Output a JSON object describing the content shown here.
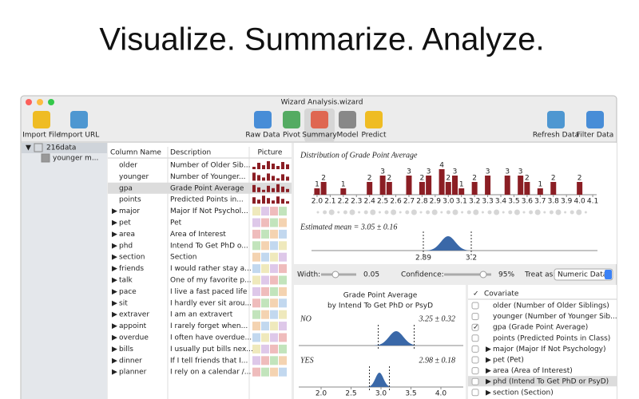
{
  "header": {
    "title": "Visualize. Summarize. Analyze."
  },
  "window": {
    "title": "Wizard Analysis.wizard"
  },
  "toolbar": {
    "left": [
      "Import File",
      "Import URL"
    ],
    "center": [
      "Raw Data",
      "Pivot",
      "Summary",
      "Model",
      "Predict"
    ],
    "right": [
      "Refresh Data",
      "Filter Data"
    ],
    "selected": 2
  },
  "sidebar": {
    "items": [
      "216data",
      "younger m..."
    ]
  },
  "table": {
    "columns": [
      "Column Name",
      "Description",
      "Picture"
    ],
    "selected": 2,
    "rows": [
      {
        "name": "older",
        "description": "Number of Older Sib...",
        "expandable": false
      },
      {
        "name": "younger",
        "description": "Number of Younger...",
        "expandable": false
      },
      {
        "name": "gpa",
        "description": "Grade Point Average",
        "expandable": false
      },
      {
        "name": "points",
        "description": "Predicted Points in...",
        "expandable": false
      },
      {
        "name": "major",
        "description": "Major If Not Psychol...",
        "expandable": true
      },
      {
        "name": "pet",
        "description": "Pet",
        "expandable": true
      },
      {
        "name": "area",
        "description": "Area of Interest",
        "expandable": true
      },
      {
        "name": "phd",
        "description": "Intend To Get PhD o...",
        "expandable": true
      },
      {
        "name": "section",
        "description": "Section",
        "expandable": true
      },
      {
        "name": "friends",
        "description": "I would rather stay a...",
        "expandable": true
      },
      {
        "name": "talk",
        "description": "One of my favorite p...",
        "expandable": true
      },
      {
        "name": "pace",
        "description": "I live a fast paced life",
        "expandable": true
      },
      {
        "name": "sit",
        "description": "I hardly ever sit arou...",
        "expandable": true
      },
      {
        "name": "extraver",
        "description": "I am an extravert",
        "expandable": true
      },
      {
        "name": "appoint",
        "description": "I rarely forget when...",
        "expandable": true
      },
      {
        "name": "overdue",
        "description": "I often have overdue...",
        "expandable": true
      },
      {
        "name": "bills",
        "description": "I usually put bills nex...",
        "expandable": true
      },
      {
        "name": "dinner",
        "description": "If I tell friends that I...",
        "expandable": true
      },
      {
        "name": "planner",
        "description": "I rely on a calendar /...",
        "expandable": true
      }
    ]
  },
  "chart_data": {
    "type": "bar",
    "title": "Distribution of Grade Point Average",
    "color": "#8b1e24",
    "x": [
      2.0,
      2.05,
      2.2,
      2.4,
      2.5,
      2.55,
      2.7,
      2.8,
      2.85,
      2.95,
      3.0,
      3.05,
      3.1,
      3.2,
      3.3,
      3.45,
      3.55,
      3.6,
      3.7,
      3.8,
      4.0
    ],
    "values": [
      1,
      2,
      1,
      2,
      3,
      2,
      3,
      2,
      3,
      4,
      2,
      3,
      1,
      2,
      3,
      3,
      3,
      2,
      1,
      2,
      2
    ],
    "xlim": [
      1.97,
      4.13
    ],
    "ylim": [
      0,
      4
    ],
    "xticks": [
      {
        "value": 2.0,
        "label": "2.0"
      },
      {
        "value": 2.1,
        "label": "2.1"
      },
      {
        "value": 2.2,
        "label": "2.2"
      },
      {
        "value": 2.3,
        "label": "2.3"
      },
      {
        "value": 2.4,
        "label": "2.4"
      },
      {
        "value": 2.5,
        "label": "2.5"
      },
      {
        "value": 2.6,
        "label": "2.6"
      },
      {
        "value": 2.7,
        "label": "2.7"
      },
      {
        "value": 2.8,
        "label": "2.8"
      },
      {
        "value": 2.9,
        "label": "2.9"
      },
      {
        "value": 3.0,
        "label": "3.0"
      },
      3.1,
      3.2,
      3.3,
      3.4,
      3.5,
      3.6,
      3.7,
      3.8,
      3.9,
      {
        "value": 4.0,
        "label": "4.0"
      },
      4.1
    ]
  },
  "mean": {
    "text": "Estimated mean = 3.05 ± 0.16",
    "low": 2.89,
    "high": 3.2
  },
  "controls": {
    "width_label": "Width:",
    "width_value": "0.05",
    "confidence_label": "Confidence:",
    "confidence_value": "95%",
    "treat_label": "Treat as:",
    "treat_value": "Numeric Data"
  },
  "group_chart": {
    "title": "Grade Point Average",
    "subtitle": "by Intend To Get PhD or PsyD",
    "groups": [
      {
        "name": "NO",
        "text": "3.25 ± 0.32"
      },
      {
        "name": "YES",
        "text": "2.98 ± 0.18"
      }
    ],
    "xticks": [
      {
        "value": 2.0,
        "label": "2.0"
      },
      {
        "value": 2.5,
        "label": "2.5"
      },
      {
        "value": 3.0,
        "label": "3.0"
      },
      {
        "value": 3.5,
        "label": "3.5"
      },
      {
        "value": 4.0,
        "label": "4.0"
      }
    ]
  },
  "covariates": {
    "header": "Covariate",
    "header_check": "✓",
    "items": [
      {
        "label": "older (Number of Older Siblings)",
        "checked": false,
        "expandable": false
      },
      {
        "label": "younger (Number of Younger Sib...",
        "checked": false,
        "expandable": false
      },
      {
        "label": "gpa (Grade Point Average)",
        "checked": true,
        "expandable": false
      },
      {
        "label": "points (Predicted Points in Class)",
        "checked": false,
        "expandable": false
      },
      {
        "label": "major (Major If Not Psychology)",
        "checked": false,
        "expandable": true
      },
      {
        "label": "pet (Pet)",
        "checked": false,
        "expandable": true
      },
      {
        "label": "area (Area of Interest)",
        "checked": false,
        "expandable": true
      },
      {
        "label": "phd (Intend To Get PhD or PsyD)",
        "checked": false,
        "expandable": true
      },
      {
        "label": "section (Section)",
        "checked": false,
        "expandable": true
      }
    ],
    "selected": 7
  }
}
